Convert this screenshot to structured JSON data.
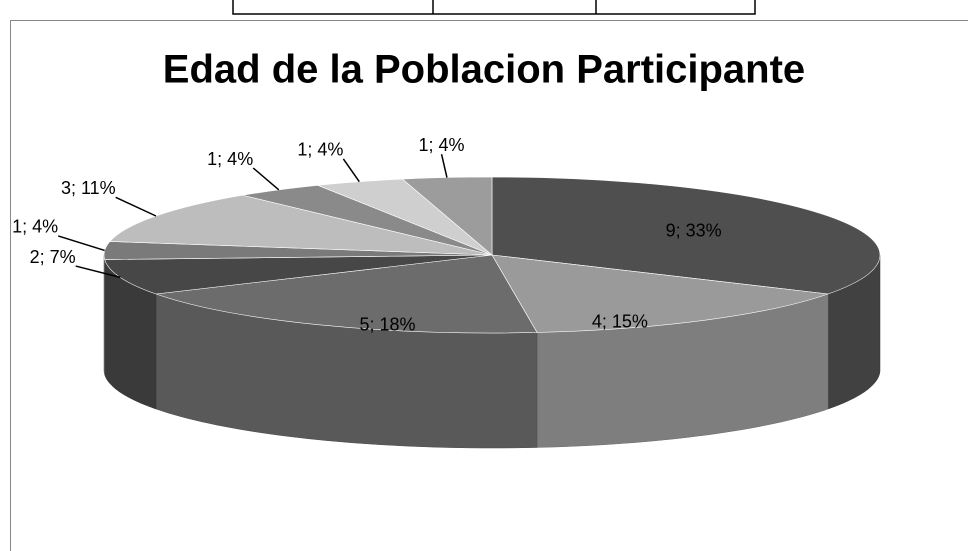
{
  "chart_data": {
    "type": "pie",
    "title": "Edad de la Poblacion Participante",
    "values": [
      9,
      4,
      5,
      2,
      1,
      3,
      1,
      1,
      1
    ],
    "value_labels": [
      "9; 33%",
      "4; 15%",
      "5; 18%",
      "2; 7%",
      "1; 4%",
      "3; 11%",
      "1; 4%",
      "1; 4%",
      "1; 4%"
    ],
    "colors": [
      "#4f4f4f",
      "#9a9a9a",
      "#6c6c6c",
      "#474747",
      "#7a7a7a",
      "#bdbdbd",
      "#8a8a8a",
      "#cfcfcf",
      "#9c9c9c"
    ]
  }
}
